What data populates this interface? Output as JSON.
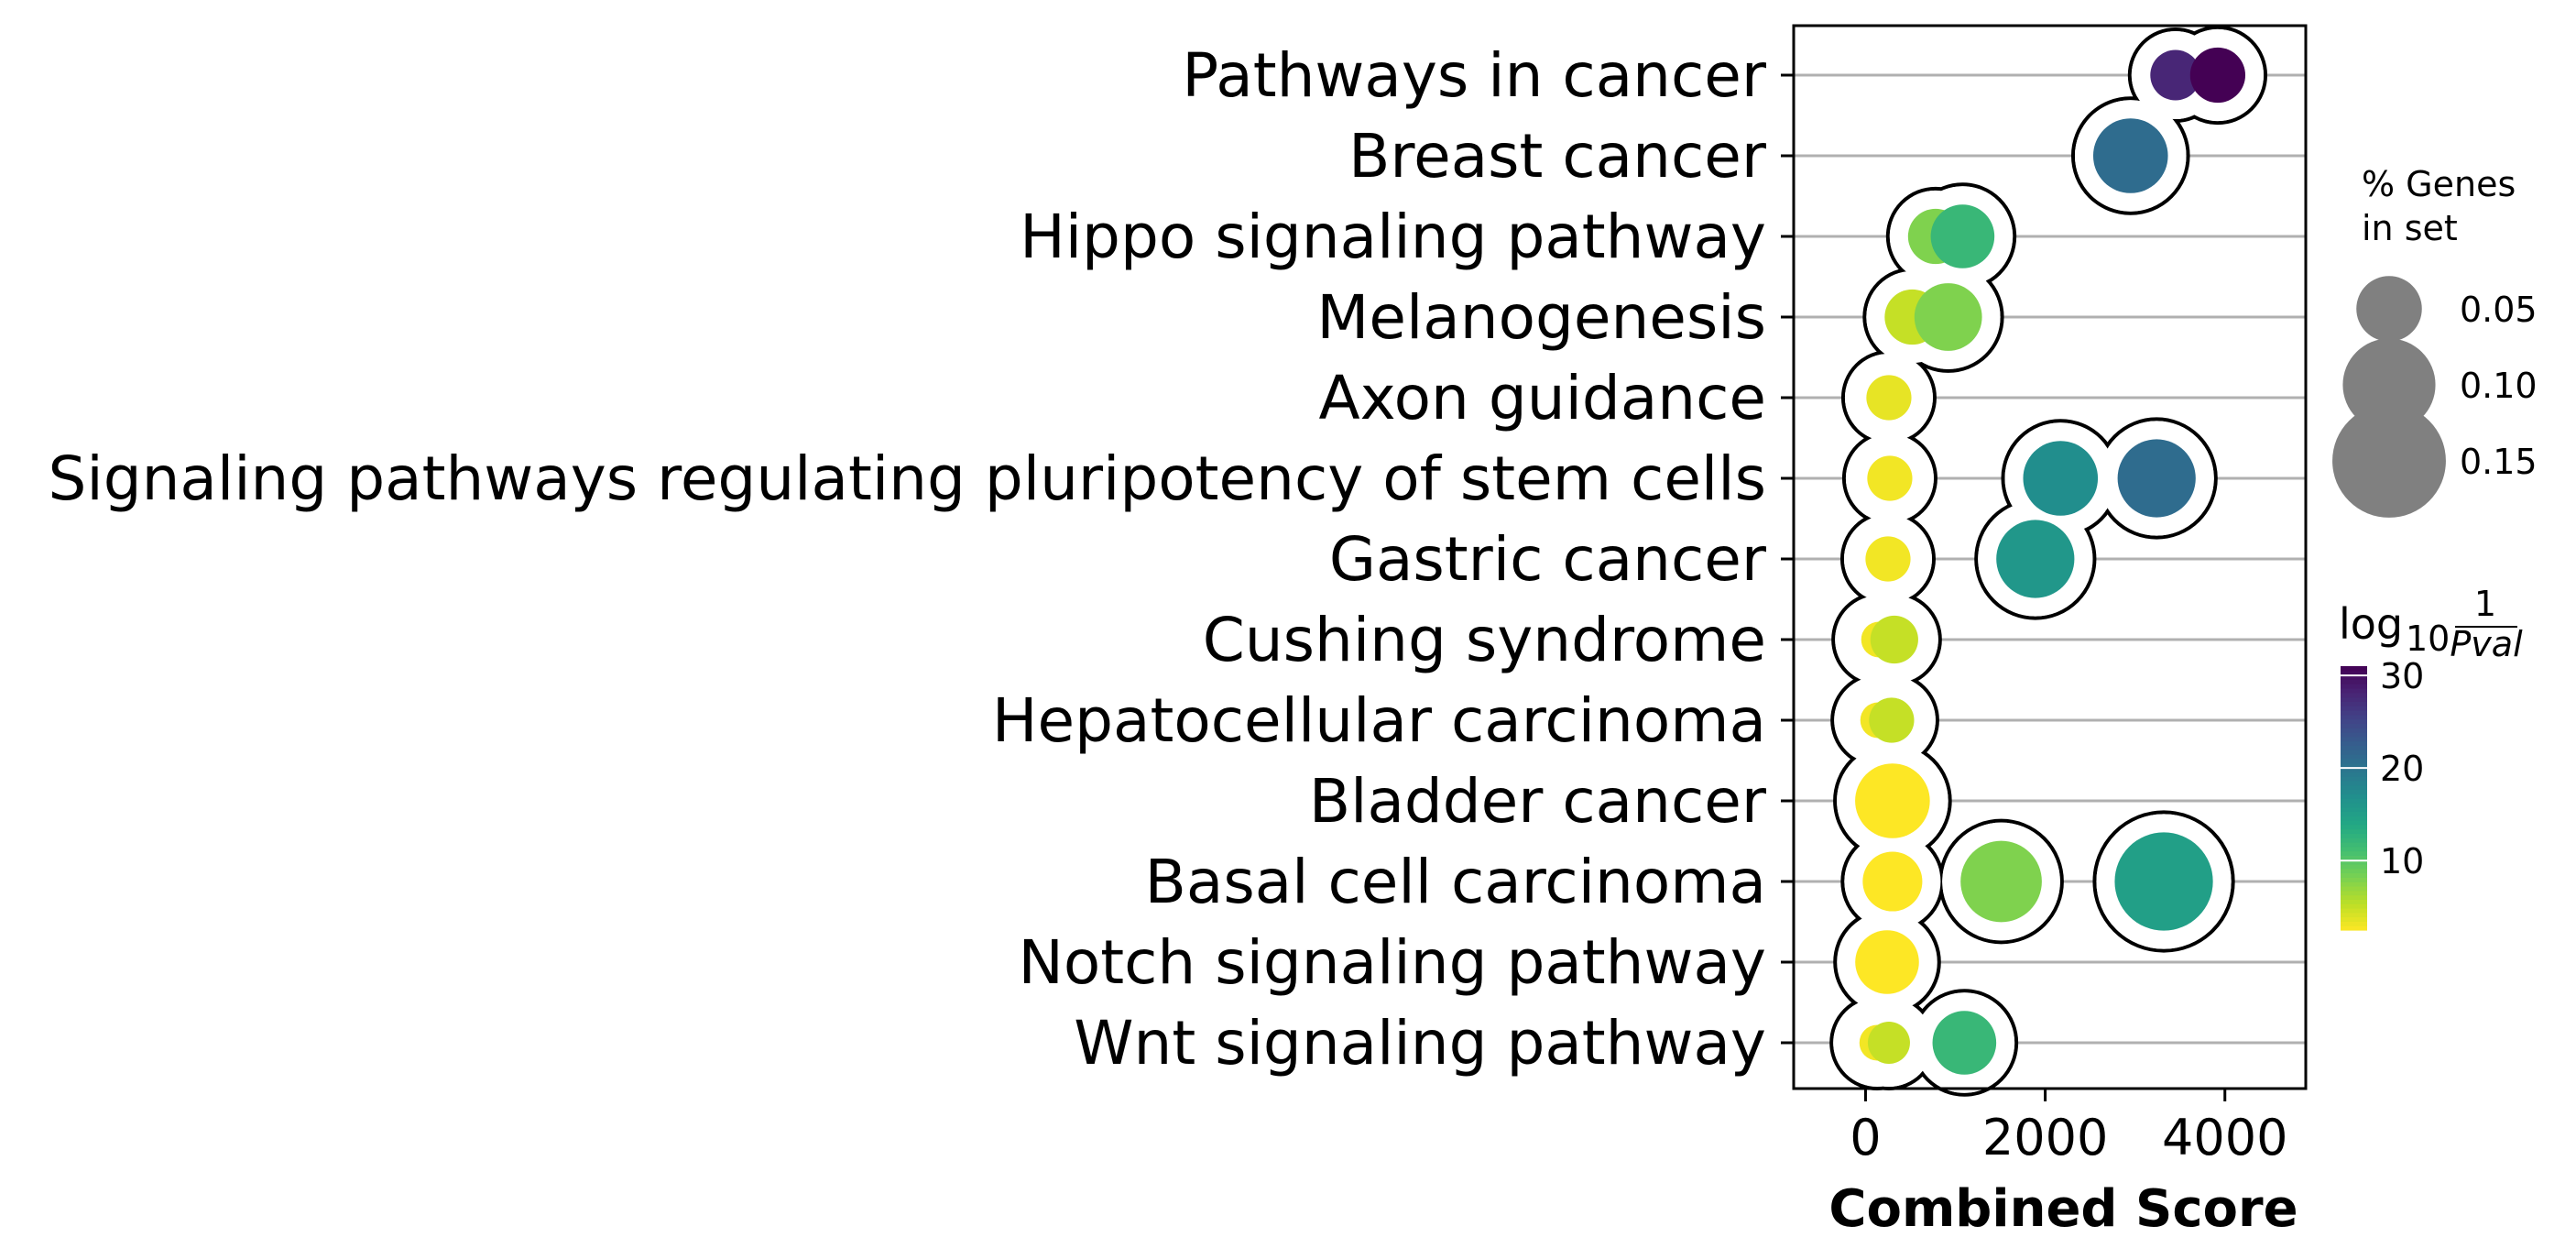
{
  "chart_data": {
    "type": "scatter",
    "xlabel": "Combined Score",
    "xlim": [
      -800,
      4900
    ],
    "xticks": [
      0,
      2000,
      4000
    ],
    "xtick_labels": [
      "0",
      "2000",
      "4000"
    ],
    "grid": "horizontal",
    "categories": [
      "Pathways in cancer",
      "Breast cancer",
      "Hippo signaling pathway",
      "Melanogenesis",
      "Axon guidance",
      "Signaling pathways regulating pluripotency of stem cells",
      "Gastric cancer",
      "Cushing syndrome",
      "Hepatocellular carcinoma",
      "Bladder cancer",
      "Basal cell carcinoma",
      "Notch signaling pathway",
      "Wnt signaling pathway"
    ],
    "size_legend": {
      "title_line1": "% Genes",
      "title_line2": "in set",
      "values": [
        0.05,
        0.1,
        0.15
      ],
      "labels": [
        "0.05",
        "0.10",
        "0.15"
      ],
      "color": "#808080"
    },
    "colorbar": {
      "title_main": "log",
      "title_sub": "10",
      "title_frac_num": "1",
      "title_frac_den": "Pval",
      "range": [
        2.5,
        31
      ],
      "ticks": [
        10,
        20,
        30
      ],
      "tick_labels": [
        "10",
        "20",
        "30"
      ],
      "colormap": "viridis_r"
    },
    "points": [
      {
        "category": 0,
        "x": 3450,
        "size": 0.05,
        "log10_1_over_pval": 28
      },
      {
        "category": 0,
        "x": 3920,
        "size": 0.06,
        "log10_1_over_pval": 31
      },
      {
        "category": 1,
        "x": 2950,
        "size": 0.11,
        "log10_1_over_pval": 21
      },
      {
        "category": 2,
        "x": 780,
        "size": 0.06,
        "log10_1_over_pval": 8
      },
      {
        "category": 2,
        "x": 1080,
        "size": 0.08,
        "log10_1_over_pval": 12
      },
      {
        "category": 3,
        "x": 520,
        "size": 0.06,
        "log10_1_over_pval": 5
      },
      {
        "category": 3,
        "x": 920,
        "size": 0.09,
        "log10_1_over_pval": 8
      },
      {
        "category": 4,
        "x": 260,
        "size": 0.04,
        "log10_1_over_pval": 3.5
      },
      {
        "category": 5,
        "x": 270,
        "size": 0.04,
        "log10_1_over_pval": 3
      },
      {
        "category": 5,
        "x": 2170,
        "size": 0.11,
        "log10_1_over_pval": 17
      },
      {
        "category": 5,
        "x": 3240,
        "size": 0.12,
        "log10_1_over_pval": 21
      },
      {
        "category": 6,
        "x": 250,
        "size": 0.04,
        "log10_1_over_pval": 3
      },
      {
        "category": 6,
        "x": 1890,
        "size": 0.12,
        "log10_1_over_pval": 16
      },
      {
        "category": 7,
        "x": 150,
        "size": 0.025,
        "log10_1_over_pval": 3
      },
      {
        "category": 7,
        "x": 320,
        "size": 0.045,
        "log10_1_over_pval": 5
      },
      {
        "category": 8,
        "x": 140,
        "size": 0.025,
        "log10_1_over_pval": 3
      },
      {
        "category": 8,
        "x": 290,
        "size": 0.04,
        "log10_1_over_pval": 5
      },
      {
        "category": 9,
        "x": 300,
        "size": 0.11,
        "log10_1_over_pval": 2.5
      },
      {
        "category": 10,
        "x": 300,
        "size": 0.07,
        "log10_1_over_pval": 2.5
      },
      {
        "category": 10,
        "x": 1510,
        "size": 0.13,
        "log10_1_over_pval": 8
      },
      {
        "category": 10,
        "x": 3320,
        "size": 0.19,
        "log10_1_over_pval": 15
      },
      {
        "category": 11,
        "x": 240,
        "size": 0.08,
        "log10_1_over_pval": 2.5
      },
      {
        "category": 11,
        "x": 250,
        "size": 0.07,
        "log10_1_over_pval": 2.5
      },
      {
        "category": 12,
        "x": 130,
        "size": 0.025,
        "log10_1_over_pval": 3
      },
      {
        "category": 12,
        "x": 260,
        "size": 0.035,
        "log10_1_over_pval": 5
      },
      {
        "category": 12,
        "x": 1100,
        "size": 0.08,
        "log10_1_over_pval": 12
      }
    ]
  }
}
